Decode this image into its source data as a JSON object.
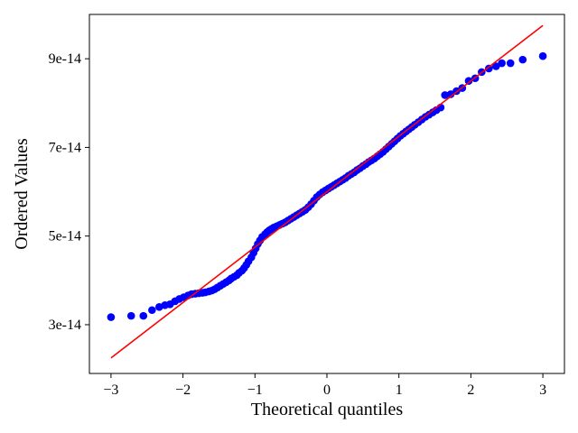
{
  "chart_data": {
    "type": "scatter",
    "title": "",
    "xlabel": "Theoretical quantiles",
    "ylabel": "Ordered Values",
    "xlim": [
      -3.3,
      3.3
    ],
    "ylim": [
      1.9e-14,
      1e-13
    ],
    "x_ticks": [
      -3,
      -2,
      -1,
      0,
      1,
      2,
      3
    ],
    "x_tick_labels": [
      "−3",
      "−2",
      "−1",
      "0",
      "1",
      "2",
      "3"
    ],
    "y_ticks": [
      3e-14,
      5e-14,
      7e-14,
      9e-14
    ],
    "y_tick_labels": [
      "3e-14",
      "5e-14",
      "7e-14",
      "9e-14"
    ],
    "grid": false,
    "legend": false,
    "colors": {
      "points": "#0000ff",
      "fit_line": "#ff0000",
      "axes": "#000000",
      "background": "#ffffff"
    },
    "fit_line": {
      "x": [
        -3,
        3
      ],
      "y": [
        2.25e-14,
        9.75e-14
      ]
    },
    "points": [
      [
        -3.0,
        3.17e-14
      ],
      [
        -2.72,
        3.2e-14
      ],
      [
        -2.55,
        3.2e-14
      ],
      [
        -2.43,
        3.33e-14
      ],
      [
        -2.33,
        3.4e-14
      ],
      [
        -2.25,
        3.44e-14
      ],
      [
        -2.18,
        3.46e-14
      ],
      [
        -2.11,
        3.53e-14
      ],
      [
        -2.05,
        3.58e-14
      ],
      [
        -1.99,
        3.62e-14
      ],
      [
        -1.93,
        3.66e-14
      ],
      [
        -1.88,
        3.69e-14
      ],
      [
        -1.83,
        3.7e-14
      ],
      [
        -1.78,
        3.71e-14
      ],
      [
        -1.73,
        3.72e-14
      ],
      [
        -1.69,
        3.73e-14
      ],
      [
        -1.64,
        3.75e-14
      ],
      [
        -1.6,
        3.77e-14
      ],
      [
        -1.56,
        3.8e-14
      ],
      [
        -1.52,
        3.84e-14
      ],
      [
        -1.48,
        3.88e-14
      ],
      [
        -1.44,
        3.92e-14
      ],
      [
        -1.4,
        3.96e-14
      ],
      [
        -1.36,
        4e-14
      ],
      [
        -1.33,
        4.04e-14
      ],
      [
        -1.29,
        4.08e-14
      ],
      [
        -1.25,
        4.12e-14
      ],
      [
        -1.22,
        4.17e-14
      ],
      [
        -1.18,
        4.22e-14
      ],
      [
        -1.15,
        4.28e-14
      ],
      [
        -1.12,
        4.35e-14
      ],
      [
        -1.09,
        4.43e-14
      ],
      [
        -1.05,
        4.52e-14
      ],
      [
        -1.02,
        4.62e-14
      ],
      [
        -0.99,
        4.72e-14
      ],
      [
        -0.96,
        4.82e-14
      ],
      [
        -0.93,
        4.9e-14
      ],
      [
        -0.9,
        4.98e-14
      ],
      [
        -0.86,
        5.04e-14
      ],
      [
        -0.83,
        5.09e-14
      ],
      [
        -0.8,
        5.13e-14
      ],
      [
        -0.77,
        5.16e-14
      ],
      [
        -0.74,
        5.19e-14
      ],
      [
        -0.7,
        5.22e-14
      ],
      [
        -0.66,
        5.25e-14
      ],
      [
        -0.62,
        5.28e-14
      ],
      [
        -0.58,
        5.31e-14
      ],
      [
        -0.54,
        5.35e-14
      ],
      [
        -0.5,
        5.39e-14
      ],
      [
        -0.46,
        5.43e-14
      ],
      [
        -0.42,
        5.47e-14
      ],
      [
        -0.38,
        5.51e-14
      ],
      [
        -0.34,
        5.55e-14
      ],
      [
        -0.3,
        5.59e-14
      ],
      [
        -0.26,
        5.65e-14
      ],
      [
        -0.22,
        5.72e-14
      ],
      [
        -0.18,
        5.8e-14
      ],
      [
        -0.14,
        5.88e-14
      ],
      [
        -0.1,
        5.94e-14
      ],
      [
        -0.06,
        5.99e-14
      ],
      [
        -0.02,
        6.03e-14
      ],
      [
        0.02,
        6.07e-14
      ],
      [
        0.06,
        6.11e-14
      ],
      [
        0.1,
        6.15e-14
      ],
      [
        0.14,
        6.19e-14
      ],
      [
        0.18,
        6.23e-14
      ],
      [
        0.22,
        6.27e-14
      ],
      [
        0.26,
        6.31e-14
      ],
      [
        0.3,
        6.36e-14
      ],
      [
        0.34,
        6.4e-14
      ],
      [
        0.38,
        6.44e-14
      ],
      [
        0.42,
        6.49e-14
      ],
      [
        0.46,
        6.53e-14
      ],
      [
        0.5,
        6.58e-14
      ],
      [
        0.54,
        6.62e-14
      ],
      [
        0.58,
        6.67e-14
      ],
      [
        0.62,
        6.71e-14
      ],
      [
        0.66,
        6.75e-14
      ],
      [
        0.7,
        6.8e-14
      ],
      [
        0.74,
        6.85e-14
      ],
      [
        0.78,
        6.9e-14
      ],
      [
        0.82,
        6.96e-14
      ],
      [
        0.86,
        7.02e-14
      ],
      [
        0.9,
        7.08e-14
      ],
      [
        0.94,
        7.14e-14
      ],
      [
        0.98,
        7.2e-14
      ],
      [
        1.02,
        7.26e-14
      ],
      [
        1.06,
        7.31e-14
      ],
      [
        1.1,
        7.36e-14
      ],
      [
        1.14,
        7.41e-14
      ],
      [
        1.18,
        7.46e-14
      ],
      [
        1.22,
        7.51e-14
      ],
      [
        1.27,
        7.57e-14
      ],
      [
        1.32,
        7.63e-14
      ],
      [
        1.37,
        7.69e-14
      ],
      [
        1.42,
        7.74e-14
      ],
      [
        1.47,
        7.79e-14
      ],
      [
        1.52,
        7.84e-14
      ],
      [
        1.58,
        7.9e-14
      ],
      [
        1.64,
        8.18e-14
      ],
      [
        1.72,
        8.2e-14
      ],
      [
        1.8,
        8.27e-14
      ],
      [
        1.88,
        8.34e-14
      ],
      [
        1.97,
        8.5e-14
      ],
      [
        2.06,
        8.56e-14
      ],
      [
        2.15,
        8.7e-14
      ],
      [
        2.25,
        8.78e-14
      ],
      [
        2.35,
        8.83e-14
      ],
      [
        2.43,
        8.9e-14
      ],
      [
        2.55,
        8.9e-14
      ],
      [
        2.72,
        8.98e-14
      ],
      [
        3.0,
        9.06e-14
      ]
    ]
  }
}
